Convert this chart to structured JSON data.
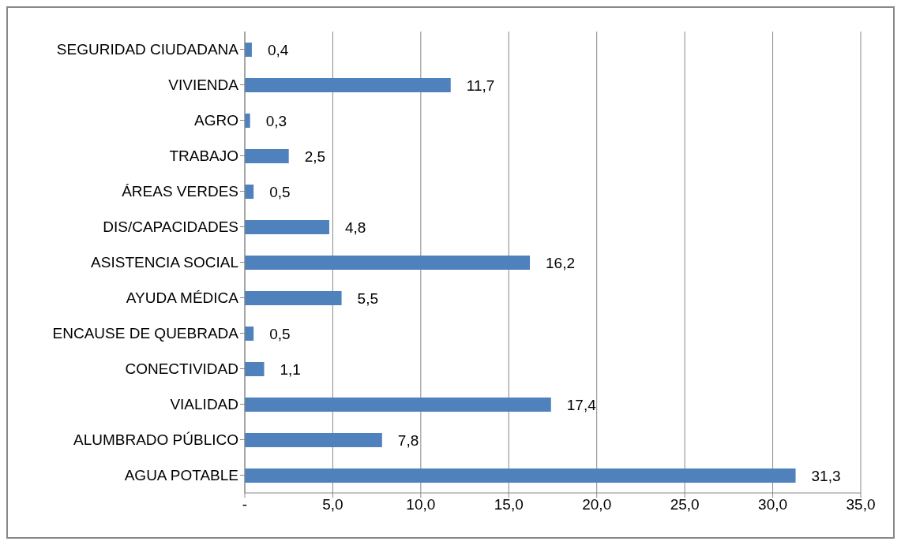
{
  "chart_data": {
    "type": "bar",
    "orientation": "horizontal",
    "categories": [
      "SEGURIDAD CIUDADANA",
      "VIVIENDA",
      "AGRO",
      "TRABAJO",
      "ÁREAS VERDES",
      "DIS/CAPACIDADES",
      "ASISTENCIA SOCIAL",
      "AYUDA MÉDICA",
      "ENCAUSE DE QUEBRADA",
      "CONECTIVIDAD",
      "VIALIDAD",
      "ALUMBRADO PÚBLICO",
      "AGUA POTABLE"
    ],
    "values": [
      0.4,
      11.7,
      0.3,
      2.5,
      0.5,
      4.8,
      16.2,
      5.5,
      0.5,
      1.1,
      17.4,
      7.8,
      31.3
    ],
    "value_labels": [
      "0,4",
      "11,7",
      "0,3",
      "2,5",
      "0,5",
      "4,8",
      "16,2",
      "5,5",
      "0,5",
      "1,1",
      "17,4",
      "7,8",
      "31,3"
    ],
    "color": "#4f81bd",
    "xlim": [
      0,
      35
    ],
    "xticks": [
      {
        "value": 0,
        "label": "-"
      },
      {
        "value": 5,
        "label": "5,0"
      },
      {
        "value": 10,
        "label": "10,0"
      },
      {
        "value": 15,
        "label": "15,0"
      },
      {
        "value": 20,
        "label": "20,0"
      },
      {
        "value": 25,
        "label": "25,0"
      },
      {
        "value": 30,
        "label": "30,0"
      },
      {
        "value": 35,
        "label": "35,0"
      }
    ],
    "grid": "x"
  }
}
